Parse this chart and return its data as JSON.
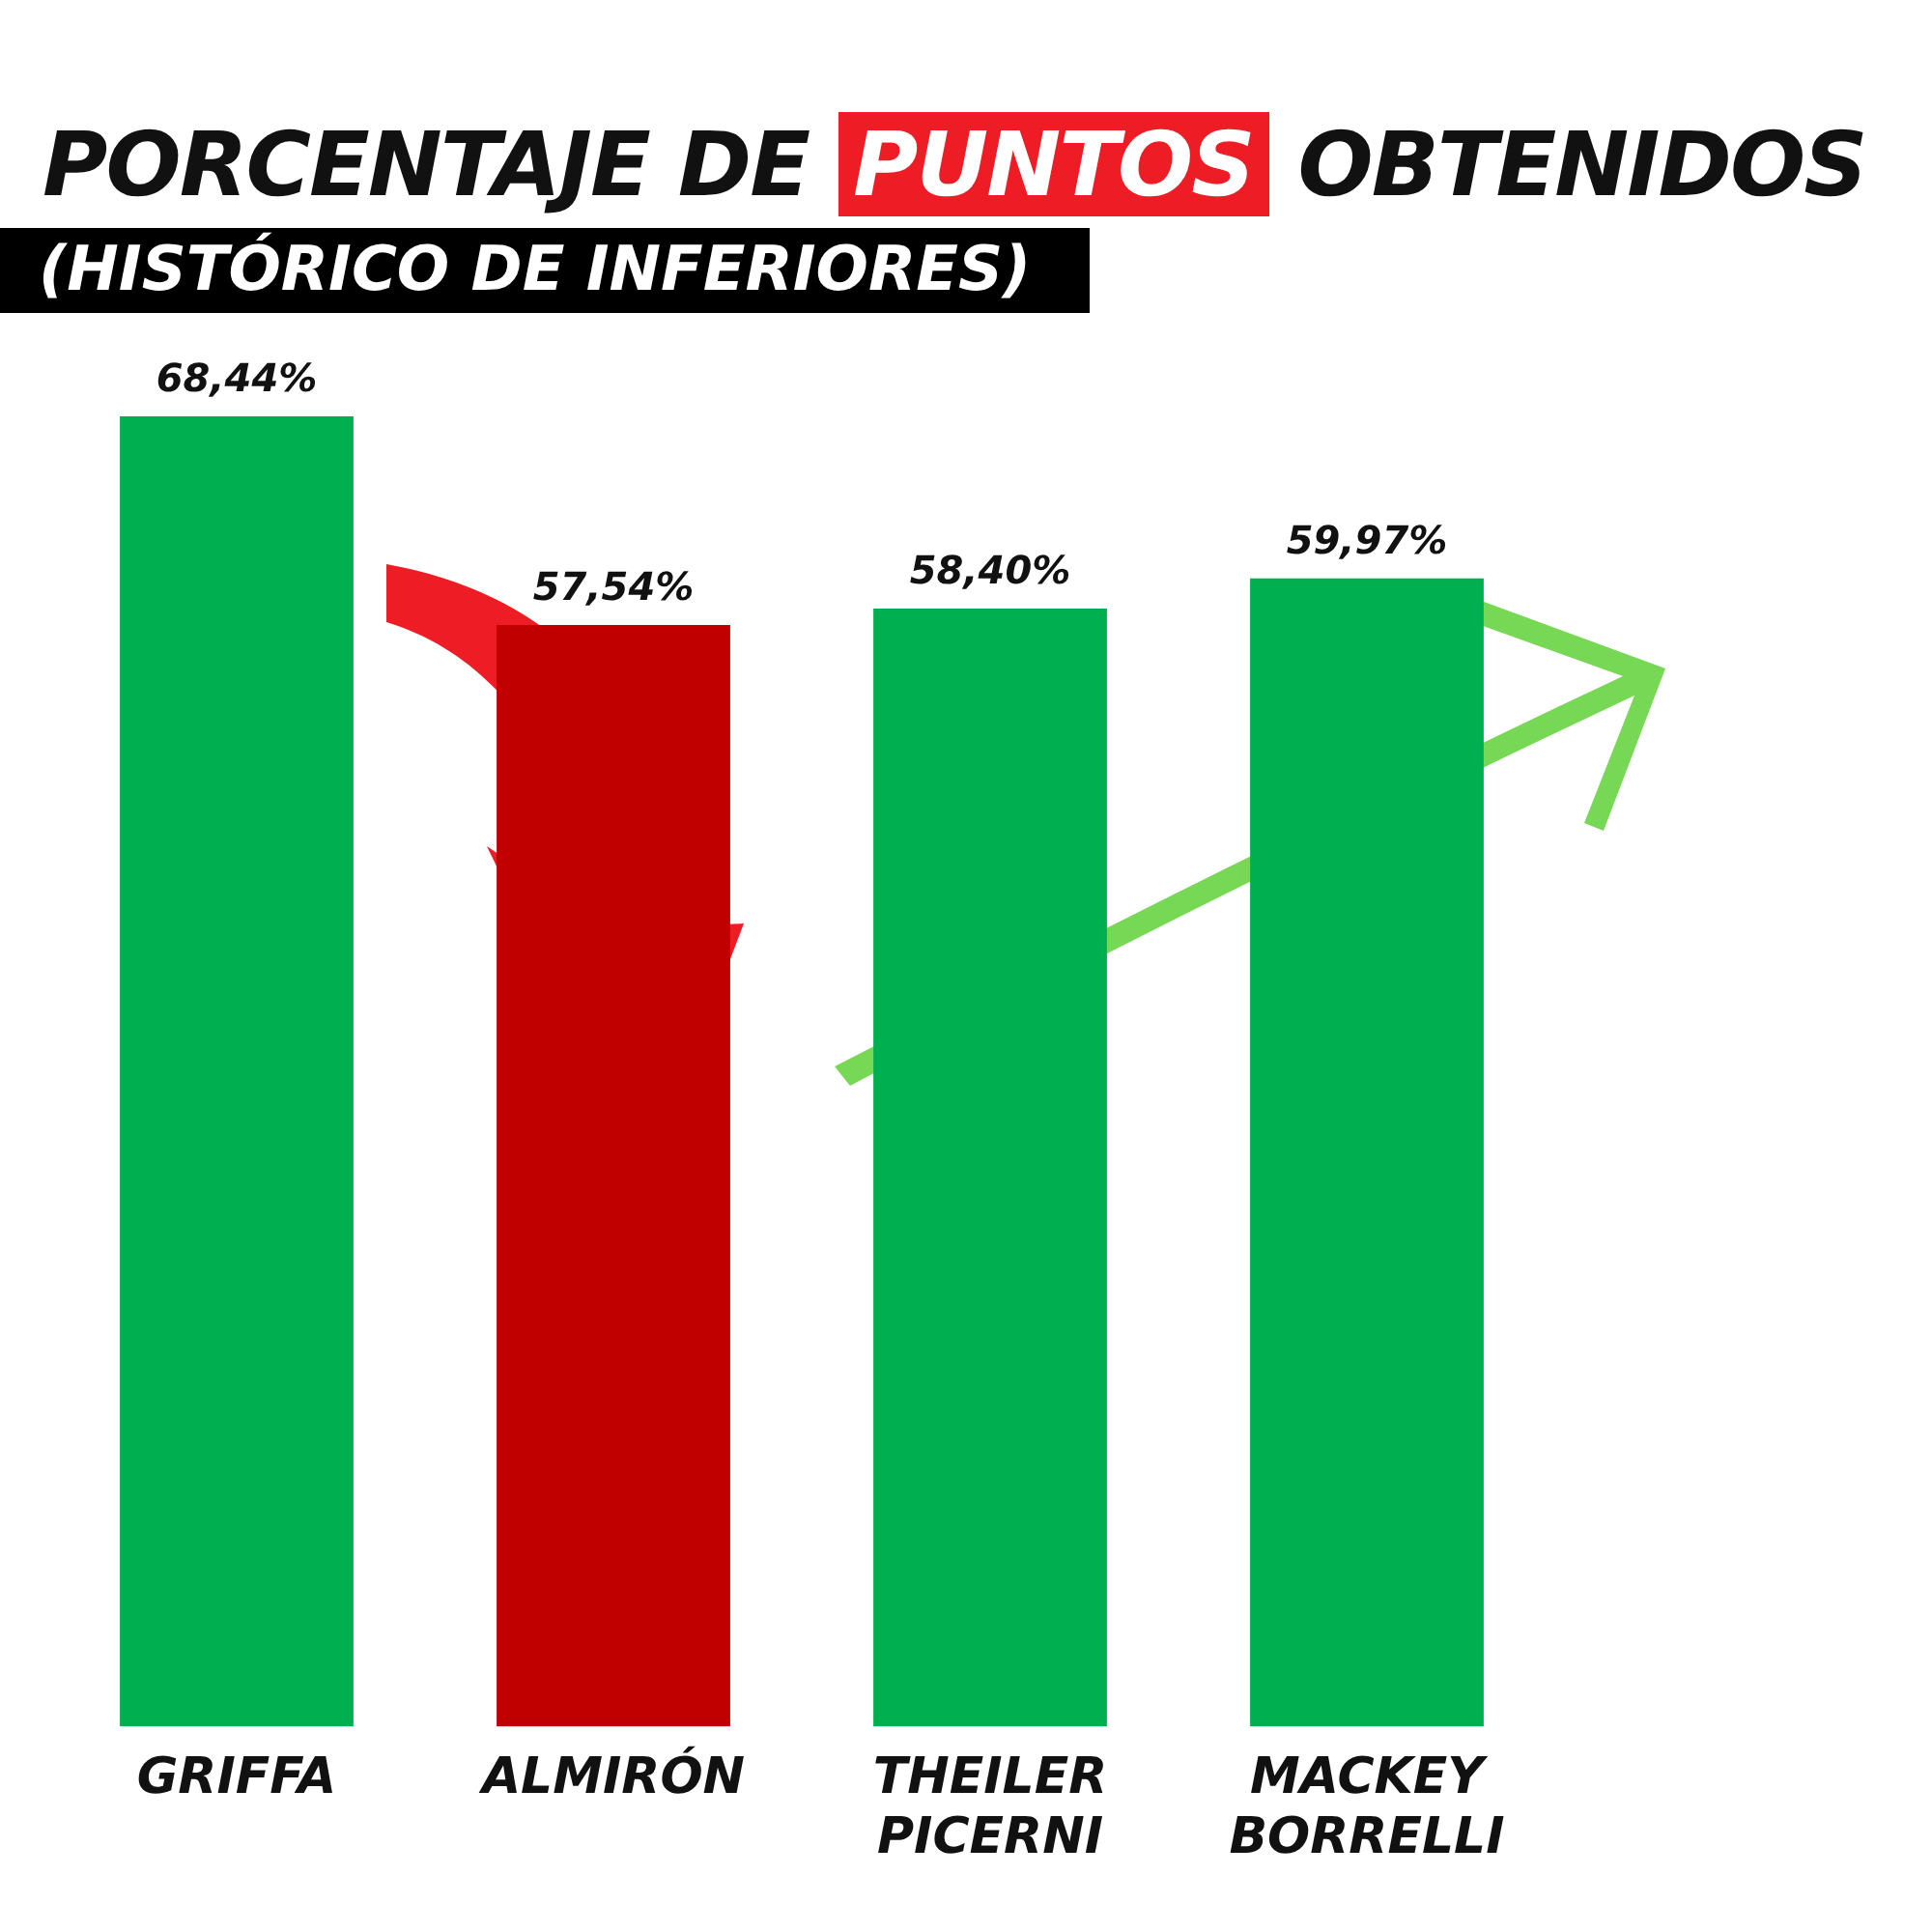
{
  "chart_data": {
    "type": "bar",
    "title": "PORCENTAJE DE PUNTOS OBTENIDOS",
    "subtitle": "(HISTÓRICO DE INFERIORES)",
    "categories": [
      "GRIFFA",
      "ALMIRÓN",
      "THEILER PICERNI",
      "MACKEY BORRELLI"
    ],
    "values": [
      68.44,
      57.54,
      58.4,
      59.97
    ],
    "colors": [
      "#00b050",
      "#c00000",
      "#00b050",
      "#00b050"
    ],
    "value_labels": [
      "68,44%",
      "57,54%",
      "58,40%",
      "59,97%"
    ],
    "tick_labels": "x",
    "grid": false,
    "legend": false
  }
}
